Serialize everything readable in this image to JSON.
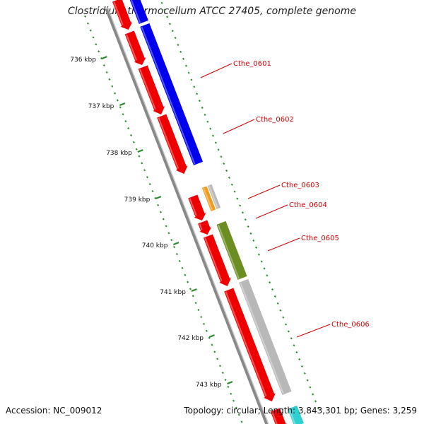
{
  "header": {
    "title": "Clostridium thermocellum ATCC 27405, complete genome"
  },
  "footer": {
    "accession": "Accession: NC_009012",
    "summary": "Topology: circular; Length: 3,843,301 bp; Genes: 3,259"
  },
  "colors": {
    "cds": "#ee0000",
    "blue_feature": "#0000ee",
    "orange_feature": "#f39a1e",
    "olive_feature": "#6b8e23",
    "gray_feature": "#b8b8b8",
    "cyan_feature": "#2fd0d0",
    "backbone": "#888888",
    "ticks": "#2a8a2a",
    "label_line": "#cc0000"
  },
  "scale": {
    "unit": "kbp",
    "ticks": [
      {
        "kbp": 736,
        "label": "736 kbp"
      },
      {
        "kbp": 737,
        "label": "737 kbp"
      },
      {
        "kbp": 738,
        "label": "738 kbp"
      },
      {
        "kbp": 739,
        "label": "739 kbp"
      },
      {
        "kbp": 740,
        "label": "740 kbp"
      },
      {
        "kbp": 741,
        "label": "741 kbp"
      },
      {
        "kbp": 742,
        "label": "742 kbp"
      },
      {
        "kbp": 743,
        "label": "743 kbp"
      }
    ]
  },
  "genes": [
    {
      "label": "Cthe_0601"
    },
    {
      "label": "Cthe_0602"
    },
    {
      "label": "Cthe_0603"
    },
    {
      "label": "Cthe_0604"
    },
    {
      "label": "Cthe_0605"
    },
    {
      "label": "Cthe_0606"
    }
  ]
}
